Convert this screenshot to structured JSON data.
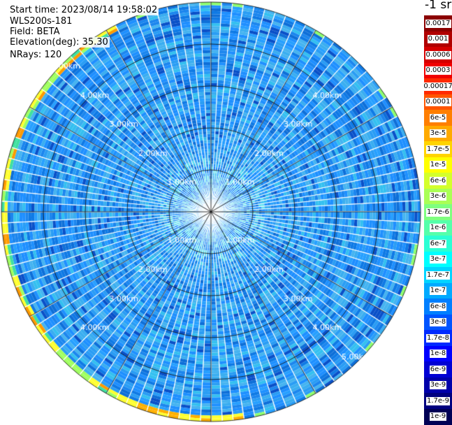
{
  "header": {
    "start_time": "Start time: 2023/08/14 19:58:02",
    "instrument": "WLS200s-181",
    "field": "Field: BETA",
    "elevation": "Elevation(deg): 35.30",
    "nrays": "NRays: 120"
  },
  "chart_data": {
    "type": "heatmap",
    "projection": "polar-ppi",
    "field": "BETA",
    "n_rays": 120,
    "elevation_deg": 35.3,
    "range_rings_km": [
      1,
      2,
      3,
      4,
      5
    ],
    "range_labels": [
      "1.00km",
      "2.00km",
      "3.00km",
      "4.00km",
      "5.00km"
    ],
    "max_range_km": 5.0,
    "colorbar_title": "-1 sr",
    "colorbar_labels": [
      "0.0017",
      "0.001",
      "0.0006",
      "0.0003",
      "0.00017",
      "0.0001",
      "6e-5",
      "3e-5",
      "1.7e-5",
      "1e-5",
      "6e-6",
      "3e-6",
      "1.7e-6",
      "1e-6",
      "6e-7",
      "3e-7",
      "1.7e-7",
      "1e-7",
      "6e-8",
      "3e-8",
      "1.7e-8",
      "1e-8",
      "6e-9",
      "3e-9",
      "1.7e-9",
      "1e-9"
    ],
    "colorbar_colors": [
      "#8b0000",
      "#b00000",
      "#d40000",
      "#f00000",
      "#ff2a00",
      "#ff5500",
      "#ff7f00",
      "#ffaa00",
      "#ffd400",
      "#ffff00",
      "#d4ff2b",
      "#aaff55",
      "#7fff7f",
      "#55ffaa",
      "#2bffd4",
      "#00ffff",
      "#00d4ff",
      "#00aaff",
      "#007fff",
      "#0055ff",
      "#002aff",
      "#0000ff",
      "#0000d4",
      "#0000aa",
      "#00007f",
      "#000055"
    ],
    "typical_value": "1e-7",
    "outer_edge_high_values": "1e-5 to 3e-5 (west and south-west edge)"
  }
}
